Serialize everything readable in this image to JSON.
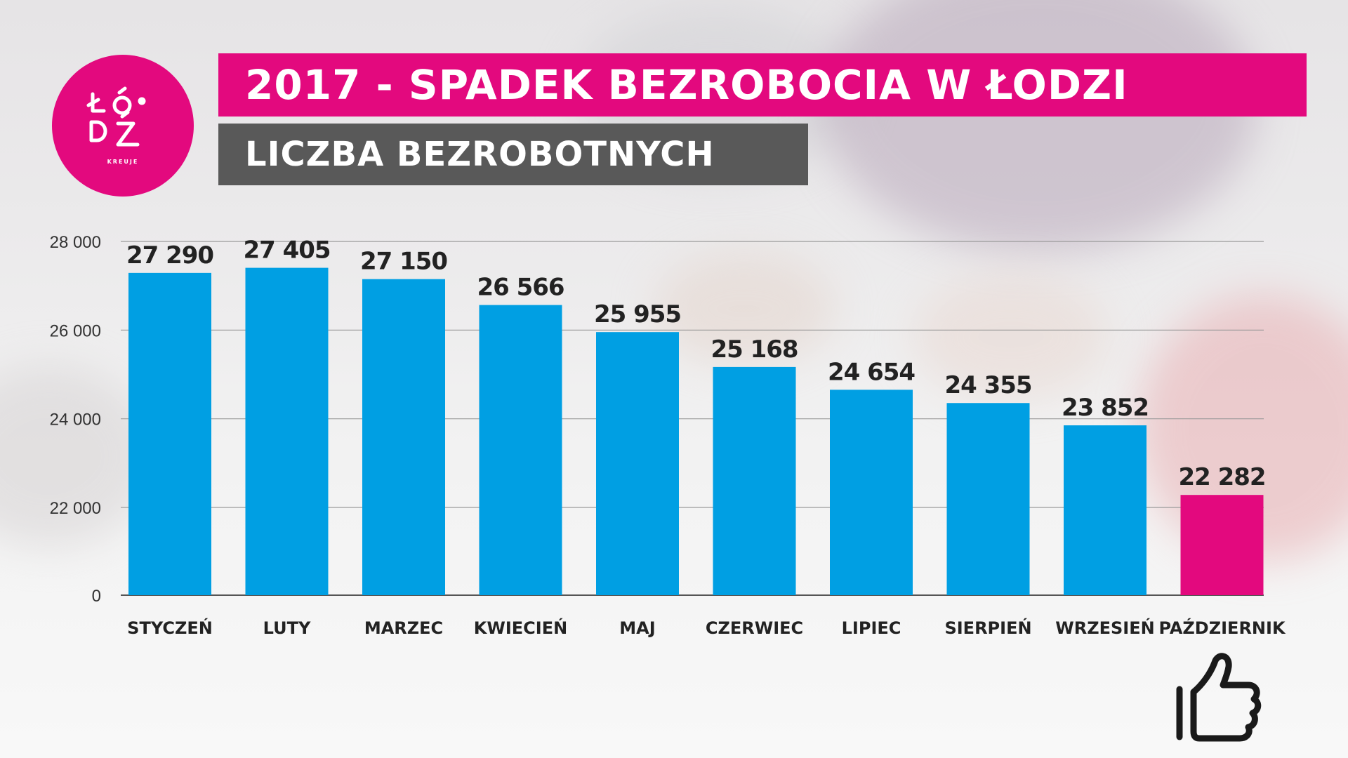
{
  "logo": {
    "text": "KREUJE",
    "color": "#e3097e"
  },
  "header": {
    "title": "2017 - SPADEK BEZROBOCIA W ŁODZI",
    "subtitle": "LICZBA BEZROBOTNYCH",
    "title_bg": "#e3097e",
    "subtitle_bg": "#595959"
  },
  "icons": {
    "thumb": "thumbs-up-icon"
  },
  "chart_data": {
    "type": "bar",
    "title": "LICZBA BEZROBOTNYCH",
    "categories": [
      "STYCZEŃ",
      "LUTY",
      "MARZEC",
      "KWIECIEŃ",
      "MAJ",
      "CZERWIEC",
      "LIPIEC",
      "SIERPIEŃ",
      "WRZESIEŃ",
      "PAŹDZIERNIK"
    ],
    "values": [
      27290,
      27405,
      27150,
      26566,
      25955,
      25168,
      24654,
      24355,
      23852,
      22282
    ],
    "value_labels": [
      "27 290",
      "27 405",
      "27 150",
      "26 566",
      "25 955",
      "25 168",
      "24 654",
      "24 355",
      "23 852",
      "22 282"
    ],
    "y_ticks": [
      0,
      22000,
      24000,
      26000,
      28000
    ],
    "y_tick_labels": [
      "0",
      "22 000",
      "24 000",
      "26 000",
      "28 000"
    ],
    "axis_break": "between 0 and 22 000",
    "bar_colors": [
      "#009fe3",
      "#009fe3",
      "#009fe3",
      "#009fe3",
      "#009fe3",
      "#009fe3",
      "#009fe3",
      "#009fe3",
      "#009fe3",
      "#e3097e"
    ],
    "grid": true
  }
}
